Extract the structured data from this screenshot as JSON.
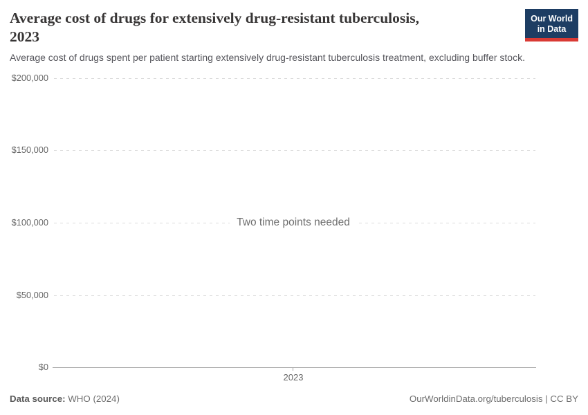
{
  "header": {
    "title_line1": "Average cost of drugs for extensively drug-resistant tuberculosis,",
    "title_line2": "2023",
    "subtitle": "Average cost of drugs spent per patient starting extensively drug-resistant tuberculosis treatment, excluding buffer stock.",
    "logo": {
      "line1": "Our World",
      "line2": "in Data"
    }
  },
  "chart_data": {
    "type": "line",
    "title": "Average cost of drugs for extensively drug-resistant tuberculosis, 2023",
    "subtitle": "Average cost of drugs spent per patient starting extensively drug-resistant tuberculosis treatment, excluding buffer stock.",
    "series": [],
    "empty_state_message": "Two time points needed",
    "xlabel": "",
    "ylabel": "",
    "ylim": [
      0,
      200000
    ],
    "grid": "horizontal-dashed",
    "legend": "none",
    "yticks": [
      {
        "value": 200000,
        "label": "$200,000"
      },
      {
        "value": 150000,
        "label": "$150,000"
      },
      {
        "value": 100000,
        "label": "$100,000"
      },
      {
        "value": 50000,
        "label": "$50,000"
      },
      {
        "value": 0,
        "label": "$0"
      }
    ],
    "xticks": [
      {
        "value": 2023,
        "label": "2023"
      }
    ]
  },
  "footer": {
    "source_label": "Data source:",
    "source_value": " WHO (2024)",
    "attribution": "OurWorldinData.org/tuberculosis | CC BY"
  },
  "colors": {
    "logo_background": "#1d3d63",
    "logo_accent": "#d93a34",
    "title_text": "#383636",
    "gridline": "#dcdcdc",
    "axis_line": "#a5a5a5"
  }
}
